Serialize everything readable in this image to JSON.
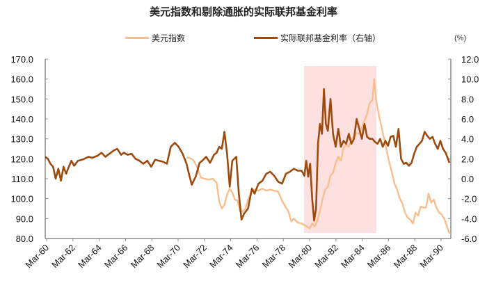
{
  "title": "美元指数和剔除通胀的实际联邦基金利率",
  "legend": {
    "dxy_label": "美元指数",
    "rate_label": "实际联邦基金利率（右轴）"
  },
  "right_unit": "(%)",
  "colors": {
    "dxy": "#F9BE8E",
    "rate": "#9C4A0E",
    "shade": "#FDE0E0",
    "axis": "#8C8C8C"
  },
  "chart_data": {
    "type": "line",
    "title": "美元指数和剔除通胀的实际联邦基金利率",
    "xlabel": "",
    "ylabel_left": "美元指数",
    "ylabel_right": "(%)",
    "y_left_range": [
      80,
      170
    ],
    "y_right_range": [
      -6,
      12
    ],
    "y_left_ticks": [
      "170.0",
      "160.0",
      "150.0",
      "140.0",
      "130.0",
      "120.0",
      "110.0",
      "100.0",
      "90.0",
      "80.0"
    ],
    "y_right_ticks": [
      "12.0",
      "10.0",
      "8.0",
      "6.0",
      "4.0",
      "2.0",
      "0.0",
      "-2.0",
      "-4.0",
      "-6.0"
    ],
    "x_ticks": [
      "Mar-60",
      "Mar-62",
      "Mar-64",
      "Mar-66",
      "Mar-68",
      "Mar-70",
      "Mar-72",
      "Mar-74",
      "Mar-76",
      "Mar-78",
      "Mar-80",
      "Mar-82",
      "Mar-84",
      "Mar-86",
      "Mar-88",
      "Mar-90"
    ],
    "grid": false,
    "legend_position": "top",
    "shaded_region": {
      "from": "1979-10",
      "to": "1985-02"
    },
    "series": [
      {
        "name": "美元指数",
        "axis": "left",
        "x": [
          1970.8,
          1971.0,
          1971.3,
          1971.6,
          1971.9,
          1972.2,
          1972.5,
          1972.8,
          1973.1,
          1973.3,
          1973.5,
          1973.7,
          1973.9,
          1974.1,
          1974.3,
          1974.5,
          1974.7,
          1974.9,
          1975.1,
          1975.3,
          1975.5,
          1975.8,
          1976.0,
          1976.3,
          1976.6,
          1976.9,
          1977.2,
          1977.5,
          1977.8,
          1978.1,
          1978.4,
          1978.6,
          1978.8,
          1979.0,
          1979.3,
          1979.6,
          1979.9,
          1980.2,
          1980.4,
          1980.6,
          1980.8,
          1981.0,
          1981.2,
          1981.4,
          1981.6,
          1981.8,
          1982.0,
          1982.2,
          1982.4,
          1982.6,
          1982.8,
          1983.0,
          1983.2,
          1983.4,
          1983.6,
          1983.8,
          1984.0,
          1984.2,
          1984.4,
          1984.6,
          1984.8,
          1985.0,
          1985.15,
          1985.3,
          1985.5,
          1985.7,
          1985.9,
          1986.1,
          1986.3,
          1986.5,
          1986.7,
          1986.9,
          1987.1,
          1987.3,
          1987.5,
          1987.7,
          1987.9,
          1988.1,
          1988.3,
          1988.5,
          1988.7,
          1988.9,
          1989.1,
          1989.3,
          1989.5,
          1989.7,
          1989.9,
          1990.1,
          1990.3,
          1990.5,
          1990.7,
          1990.9
        ],
        "values": [
          120.5,
          120.5,
          119.5,
          116.0,
          110.5,
          110.0,
          109.5,
          110.0,
          108.0,
          98.5,
          95.0,
          97.0,
          102.0,
          105.0,
          103.0,
          99.5,
          99.0,
          93.5,
          93.5,
          95.0,
          99.5,
          104.0,
          104.5,
          104.0,
          105.0,
          104.0,
          104.5,
          104.0,
          103.5,
          99.0,
          95.5,
          93.5,
          88.5,
          90.0,
          88.0,
          87.5,
          86.5,
          85.0,
          87.5,
          86.0,
          89.0,
          94.0,
          100.0,
          104.5,
          106.0,
          111.5,
          113.0,
          118.0,
          121.0,
          119.0,
          125.5,
          127.0,
          126.0,
          130.0,
          131.0,
          133.0,
          132.5,
          136.0,
          139.0,
          142.5,
          148.0,
          149.5,
          160.0,
          149.0,
          142.0,
          136.0,
          130.0,
          124.0,
          118.0,
          113.0,
          107.5,
          104.5,
          100.0,
          97.5,
          93.0,
          90.5,
          89.5,
          87.5,
          93.0,
          91.5,
          96.0,
          95.5,
          95.5,
          102.5,
          98.0,
          99.5,
          95.5,
          93.0,
          92.0,
          90.0,
          86.0,
          82.5
        ]
      },
      {
        "name": "实际联邦基金利率（右轴）",
        "axis": "right",
        "x": [
          1960.0,
          1960.2,
          1960.4,
          1960.6,
          1960.8,
          1961.0,
          1961.2,
          1961.4,
          1961.6,
          1961.8,
          1962.0,
          1962.2,
          1962.5,
          1962.8,
          1963.0,
          1963.3,
          1963.6,
          1964.0,
          1964.3,
          1964.6,
          1964.9,
          1965.2,
          1965.5,
          1965.8,
          1966.0,
          1966.3,
          1966.6,
          1966.9,
          1967.2,
          1967.5,
          1967.8,
          1968.1,
          1968.4,
          1968.7,
          1969.0,
          1969.3,
          1969.6,
          1969.9,
          1970.2,
          1970.5,
          1970.8,
          1971.0,
          1971.2,
          1971.5,
          1971.8,
          1972.0,
          1972.3,
          1972.6,
          1972.9,
          1973.1,
          1973.3,
          1973.5,
          1973.7,
          1973.9,
          1974.1,
          1974.3,
          1974.6,
          1974.8,
          1975.0,
          1975.2,
          1975.5,
          1975.8,
          1976.0,
          1976.3,
          1976.6,
          1976.9,
          1977.2,
          1977.5,
          1977.8,
          1978.1,
          1978.4,
          1978.7,
          1979.0,
          1979.3,
          1979.6,
          1979.8,
          1979.95,
          1980.1,
          1980.25,
          1980.4,
          1980.55,
          1980.7,
          1980.85,
          1981.0,
          1981.15,
          1981.3,
          1981.45,
          1981.6,
          1981.8,
          1982.0,
          1982.2,
          1982.4,
          1982.6,
          1982.8,
          1983.0,
          1983.2,
          1983.4,
          1983.6,
          1983.8,
          1984.0,
          1984.2,
          1984.4,
          1984.6,
          1984.8,
          1985.0,
          1985.2,
          1985.4,
          1985.6,
          1985.8,
          1986.0,
          1986.2,
          1986.4,
          1986.6,
          1986.8,
          1987.0,
          1987.2,
          1987.4,
          1987.6,
          1987.8,
          1988.0,
          1988.2,
          1988.4,
          1988.6,
          1988.8,
          1989.0,
          1989.2,
          1989.4,
          1989.6,
          1989.8,
          1990.0,
          1990.2,
          1990.4,
          1990.6,
          1990.9
        ],
        "values": [
          2.2,
          2.0,
          1.5,
          1.2,
          0.0,
          1.0,
          -0.2,
          1.2,
          0.5,
          1.2,
          1.8,
          1.3,
          1.8,
          1.9,
          2.0,
          2.2,
          2.1,
          2.3,
          2.6,
          2.2,
          2.5,
          2.8,
          3.0,
          2.4,
          2.6,
          2.4,
          2.5,
          2.0,
          1.8,
          1.5,
          1.8,
          1.2,
          1.9,
          1.8,
          1.7,
          1.5,
          3.2,
          3.6,
          3.2,
          2.5,
          1.5,
          0.4,
          -0.6,
          0.2,
          1.6,
          1.8,
          2.2,
          1.6,
          2.4,
          2.6,
          3.2,
          3.0,
          4.7,
          2.5,
          -0.8,
          1.8,
          2.2,
          -1.5,
          -4.1,
          -3.5,
          -3.0,
          -1.0,
          -1.5,
          -0.5,
          -0.2,
          0.5,
          0.7,
          0.3,
          -0.3,
          -0.5,
          0.5,
          0.7,
          1.0,
          0.8,
          0.8,
          0.3,
          1.8,
          0.2,
          1.5,
          -2.0,
          -4.2,
          -3.0,
          3.5,
          5.5,
          4.5,
          9.0,
          5.5,
          4.8,
          8.0,
          4.5,
          3.2,
          5.0,
          3.2,
          3.8,
          3.5,
          4.5,
          3.5,
          4.0,
          6.0,
          5.0,
          4.0,
          5.5,
          4.2,
          4.0,
          4.0,
          3.7,
          3.5,
          4.0,
          3.2,
          3.8,
          3.3,
          4.2,
          4.3,
          3.2,
          5.0,
          2.0,
          1.5,
          1.6,
          1.3,
          1.6,
          2.5,
          3.2,
          3.5,
          3.8,
          4.7,
          4.3,
          4.0,
          4.2,
          3.5,
          3.0,
          3.8,
          3.0,
          2.6,
          1.6
        ]
      }
    ]
  }
}
